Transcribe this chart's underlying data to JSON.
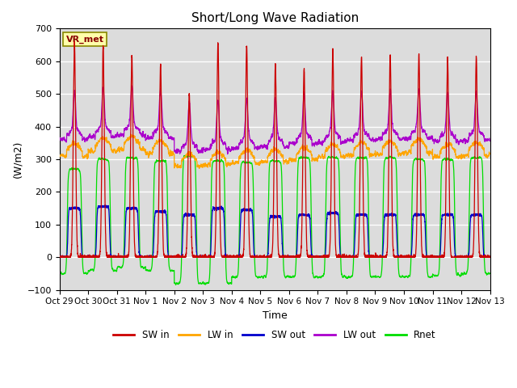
{
  "title": "Short/Long Wave Radiation",
  "xlabel": "Time",
  "ylabel": "(W/m2)",
  "ylim": [
    -100,
    700
  ],
  "bg_color": "#dcdcdc",
  "fig_bg": "#ffffff",
  "annotation": "VR_met",
  "legend": [
    {
      "label": "SW in",
      "color": "#cc0000"
    },
    {
      "label": "LW in",
      "color": "#ffa500"
    },
    {
      "label": "SW out",
      "color": "#0000cc"
    },
    {
      "label": "LW out",
      "color": "#aa00cc"
    },
    {
      "label": "Rnet",
      "color": "#00dd00"
    }
  ],
  "xtick_labels": [
    "Oct 29",
    "Oct 30",
    "Oct 31",
    "Nov 1",
    "Nov 2",
    "Nov 3",
    "Nov 4",
    "Nov 5",
    "Nov 6",
    "Nov 7",
    "Nov 8",
    "Nov 9",
    "Nov 10",
    "Nov 11",
    "Nov 12",
    "Nov 13"
  ],
  "num_days": 15,
  "pts_per_day": 288,
  "SW_in_peaks": [
    660,
    650,
    620,
    590,
    500,
    655,
    650,
    590,
    580,
    635,
    615,
    620,
    620,
    610,
    615
  ],
  "LW_in_base": [
    310,
    325,
    330,
    318,
    278,
    283,
    288,
    292,
    298,
    307,
    312,
    316,
    321,
    307,
    312
  ],
  "LW_out_base": [
    360,
    370,
    375,
    365,
    325,
    330,
    335,
    340,
    348,
    353,
    358,
    362,
    365,
    355,
    358
  ],
  "SW_out_peaks": [
    150,
    155,
    150,
    140,
    130,
    150,
    145,
    125,
    130,
    135,
    130,
    130,
    130,
    130,
    130
  ],
  "Rnet_day_peaks": [
    270,
    300,
    305,
    295,
    310,
    295,
    290,
    295,
    305,
    305,
    305,
    305,
    300,
    300,
    305
  ],
  "Rnet_night": [
    -50,
    -40,
    -30,
    -40,
    -80,
    -80,
    -60,
    -60,
    -60,
    -60,
    -60,
    -60,
    -60,
    -55,
    -50
  ]
}
